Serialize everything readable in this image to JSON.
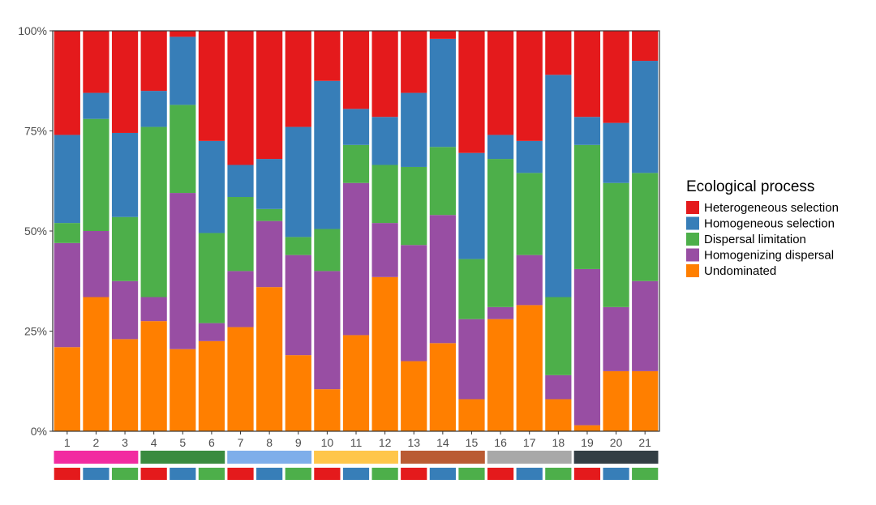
{
  "chart_data": {
    "type": "bar",
    "stacked": true,
    "categories": [
      "1",
      "2",
      "3",
      "4",
      "5",
      "6",
      "7",
      "8",
      "9",
      "10",
      "11",
      "12",
      "13",
      "14",
      "15",
      "16",
      "17",
      "18",
      "19",
      "20",
      "21"
    ],
    "y_ticks": [
      "0%",
      "25%",
      "50%",
      "75%",
      "100%"
    ],
    "ylim": [
      0,
      100
    ],
    "legend": {
      "title": "Ecological process",
      "position": "right"
    },
    "series": [
      {
        "name": "Undominated",
        "color": "#FF7F00",
        "values": [
          21,
          33.5,
          23,
          27.5,
          20.5,
          22.5,
          26,
          36,
          19,
          10.5,
          24,
          38.5,
          17.5,
          22,
          8,
          28,
          31.5,
          8,
          1.5,
          15,
          15
        ]
      },
      {
        "name": "Homogenizing dispersal",
        "color": "#984EA3",
        "values": [
          26,
          16.5,
          14.5,
          6,
          39,
          4.5,
          14,
          16.5,
          25,
          29.5,
          38,
          13.5,
          29,
          32,
          20,
          3,
          12.5,
          6,
          39,
          16,
          22.5
        ]
      },
      {
        "name": "Dispersal limitation",
        "color": "#4DAF4A",
        "values": [
          5,
          28,
          16,
          42.5,
          22,
          22.5,
          18.5,
          3,
          4.5,
          10.5,
          9.5,
          14.5,
          19.5,
          17,
          15,
          37,
          20.5,
          19.5,
          31,
          31,
          27
        ]
      },
      {
        "name": "Homogeneous selection",
        "color": "#377EB8",
        "values": [
          22,
          6.5,
          21,
          9,
          17,
          23,
          8,
          12.5,
          27.5,
          37,
          9,
          12,
          18.5,
          27,
          26.5,
          6,
          8,
          55.5,
          7,
          15,
          28
        ]
      },
      {
        "name": "Heterogeneous selection",
        "color": "#E41A1C",
        "values": [
          26,
          15.5,
          25.5,
          15,
          1.5,
          27.5,
          33.5,
          32,
          24,
          12.5,
          19.5,
          21.5,
          15.5,
          2,
          30.5,
          26,
          27.5,
          11,
          21.5,
          23,
          7.5
        ]
      }
    ],
    "legend_order": [
      "Heterogeneous selection",
      "Homogeneous selection",
      "Dispersal limitation",
      "Homogenizing dispersal",
      "Undominated"
    ],
    "annotation_rows": [
      {
        "name": "group",
        "blocks": [
          {
            "span": [
              1,
              3
            ],
            "color": "#F22BA0"
          },
          {
            "span": [
              4,
              6
            ],
            "color": "#3A8B3F"
          },
          {
            "span": [
              7,
              9
            ],
            "color": "#7EAEEA"
          },
          {
            "span": [
              10,
              12
            ],
            "color": "#FFC64A"
          },
          {
            "span": [
              13,
              15
            ],
            "color": "#BA5B33"
          },
          {
            "span": [
              16,
              18
            ],
            "color": "#A8A8A8"
          },
          {
            "span": [
              19,
              21
            ],
            "color": "#333E44"
          }
        ]
      },
      {
        "name": "subgroup",
        "colors": [
          "#E41A1C",
          "#377EB8",
          "#4DAF4A",
          "#E41A1C",
          "#377EB8",
          "#4DAF4A",
          "#E41A1C",
          "#377EB8",
          "#4DAF4A",
          "#E41A1C",
          "#377EB8",
          "#4DAF4A",
          "#E41A1C",
          "#377EB8",
          "#4DAF4A",
          "#E41A1C",
          "#377EB8",
          "#4DAF4A",
          "#E41A1C",
          "#377EB8",
          "#4DAF4A"
        ]
      }
    ]
  }
}
